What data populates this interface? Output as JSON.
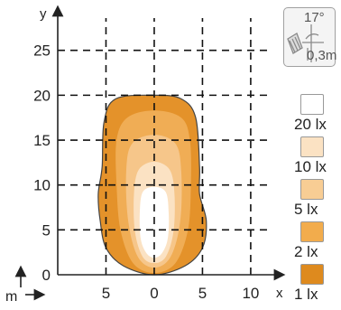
{
  "chart_data": {
    "type": "isolux_plot",
    "x_unit": "m",
    "x_axis_letter": "x",
    "y_axis_letter": "y",
    "xlim": [
      -10,
      13
    ],
    "ylim": [
      0,
      29
    ],
    "x_ticks": [
      -5,
      0,
      5,
      10
    ],
    "x_tick_labels": [
      "5",
      "0",
      "5",
      "10"
    ],
    "y_ticks": [
      0,
      5,
      10,
      15,
      20,
      25
    ],
    "y_tick_labels": [
      "0",
      "5",
      "10",
      "15",
      "20",
      "25"
    ],
    "grid": true,
    "mounting": {
      "angle": "17°",
      "height": "0,3m"
    },
    "contours": [
      {
        "level": "1 lx",
        "color": "#e4922a",
        "outline": [
          [
            0,
            20
          ],
          [
            2.8,
            19.6
          ],
          [
            4.3,
            17.5
          ],
          [
            4.7,
            12
          ],
          [
            4.7,
            9
          ],
          [
            5.4,
            6
          ],
          [
            5,
            3
          ],
          [
            3.2,
            1
          ],
          [
            0,
            0
          ],
          [
            -3.2,
            1
          ],
          [
            -5,
            3
          ],
          [
            -5.6,
            6
          ],
          [
            -5.8,
            9
          ],
          [
            -5.4,
            12
          ],
          [
            -5.2,
            17
          ],
          [
            -4,
            19.6
          ]
        ]
      },
      {
        "level": "2 lx",
        "color": "#f0ad55",
        "outline": [
          [
            0,
            18.3
          ],
          [
            2.8,
            17.5
          ],
          [
            3.7,
            15
          ],
          [
            3.8,
            10
          ],
          [
            3.5,
            5
          ],
          [
            2.2,
            1.3
          ],
          [
            0,
            0.2
          ],
          [
            -2.2,
            1.3
          ],
          [
            -3.5,
            5
          ],
          [
            -3.9,
            10
          ],
          [
            -3.9,
            15
          ],
          [
            -2.8,
            17.5
          ]
        ]
      },
      {
        "level": "5 lx",
        "color": "#f6c68a",
        "outline": [
          [
            0,
            15.6
          ],
          [
            2.2,
            14.6
          ],
          [
            2.8,
            11.5
          ],
          [
            2.7,
            6
          ],
          [
            1.7,
            2
          ],
          [
            0,
            0.8
          ],
          [
            -1.7,
            2
          ],
          [
            -2.7,
            6
          ],
          [
            -2.9,
            11.5
          ],
          [
            -2.3,
            14.6
          ]
        ]
      },
      {
        "level": "10 lx",
        "color": "#fbe2c3",
        "outline": [
          [
            0,
            12.6
          ],
          [
            1.6,
            11.7
          ],
          [
            2.1,
            9
          ],
          [
            2,
            4.8
          ],
          [
            1.2,
            2
          ],
          [
            0,
            1.3
          ],
          [
            -1.2,
            2
          ],
          [
            -2,
            4.8
          ],
          [
            -2.1,
            9
          ],
          [
            -1.6,
            11.7
          ]
        ]
      },
      {
        "level": "20 lx",
        "color": "#ffffff",
        "outline": [
          [
            0,
            9.8
          ],
          [
            1.2,
            9.2
          ],
          [
            1.5,
            6.8
          ],
          [
            1.4,
            4
          ],
          [
            0.8,
            2.4
          ],
          [
            0,
            1.9
          ],
          [
            -0.8,
            2.4
          ],
          [
            -1.4,
            4
          ],
          [
            -1.5,
            6.8
          ],
          [
            -1.2,
            9.2
          ]
        ]
      }
    ]
  },
  "legend": [
    {
      "label": "20 lx",
      "color": "#ffffff"
    },
    {
      "label": "10 lx",
      "color": "#fbe2c3"
    },
    {
      "label": "5 lx",
      "color": "#f8cd94"
    },
    {
      "label": "2 lx",
      "color": "#f2ac4c"
    },
    {
      "label": "1 lx",
      "color": "#de8a1e"
    }
  ]
}
